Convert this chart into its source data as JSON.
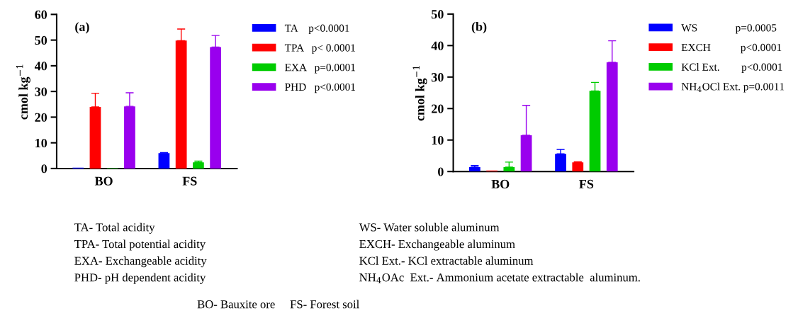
{
  "chart_data": [
    {
      "type": "bar",
      "title": "(a)",
      "ylabel": "cmol kg$^{−1}$",
      "categories": [
        "BO",
        "FS"
      ],
      "series": [
        {
          "name": "TA    p<0.0001",
          "color": "#0000ff",
          "values": [
            0.3,
            6.0
          ],
          "errors": [
            null,
            [
              6.0,
              6.2
            ]
          ]
        },
        {
          "name": "TPA   p< 0.0001",
          "color": "#ff0000",
          "values": [
            24.0,
            49.8
          ],
          "errors": [
            [
              24.0,
              29.3
            ],
            [
              49.8,
              54.3
            ]
          ]
        },
        {
          "name": "EXA   p=0.0001",
          "color": "#00cc00",
          "values": [
            0.2,
            2.4
          ],
          "errors": [
            null,
            [
              2.4,
              2.9
            ]
          ]
        },
        {
          "name": "PHD   p<0.0001",
          "color": "#9900ee",
          "values": [
            24.2,
            47.3
          ],
          "errors": [
            [
              24.2,
              29.5
            ],
            [
              47.3,
              51.8
            ]
          ]
        }
      ],
      "ylim": [
        0,
        60
      ],
      "yticks": [
        0,
        10,
        20,
        30,
        40,
        50,
        60
      ],
      "legend": "right",
      "grid": false,
      "annotations": [
        "TA- Total acidity",
        "TPA- Total potential acidity",
        "EXA- Exchangeable acidity",
        "PHD- pH dependent acidity",
        "BO- Bauxite ore     FS- Forest soil"
      ]
    },
    {
      "type": "bar",
      "title": "(b)",
      "ylabel": "cmol kg$^{−1}$",
      "categories": [
        "BO",
        "FS"
      ],
      "series": [
        {
          "name": "WS              p=0.0005",
          "color": "#0000ff",
          "values": [
            1.4,
            5.6
          ],
          "errors": [
            [
              1.4,
              1.9
            ],
            [
              5.6,
              7.0
            ]
          ]
        },
        {
          "name": "EXCH           p<0.0001",
          "color": "#ff0000",
          "values": [
            0.3,
            2.9
          ],
          "errors": [
            null,
            [
              2.9,
              3.1
            ]
          ]
        },
        {
          "name": "KCl Ext.        p<0.0001",
          "color": "#00cc00",
          "values": [
            1.4,
            25.6
          ],
          "errors": [
            [
              1.4,
              3.0
            ],
            [
              25.6,
              28.3
            ]
          ]
        },
        {
          "name": "NH$_{4}$OCl Ext. p=0.0011",
          "color": "#9900ee",
          "values": [
            11.5,
            34.7
          ],
          "errors": [
            [
              11.5,
              21.0
            ],
            [
              34.7,
              41.5
            ]
          ]
        }
      ],
      "ylim": [
        0,
        50
      ],
      "yticks": [
        0,
        10,
        20,
        30,
        40,
        50
      ],
      "legend": "right",
      "grid": false,
      "annotations": [
        "WS- Water soluble aluminum",
        "EXCH- Exchangeable aluminum",
        "KCl Ext.- KCl extractable aluminum",
        "NH$_{4}$OAc  Ext.- Ammonium acetate extractable  aluminum."
      ]
    }
  ]
}
